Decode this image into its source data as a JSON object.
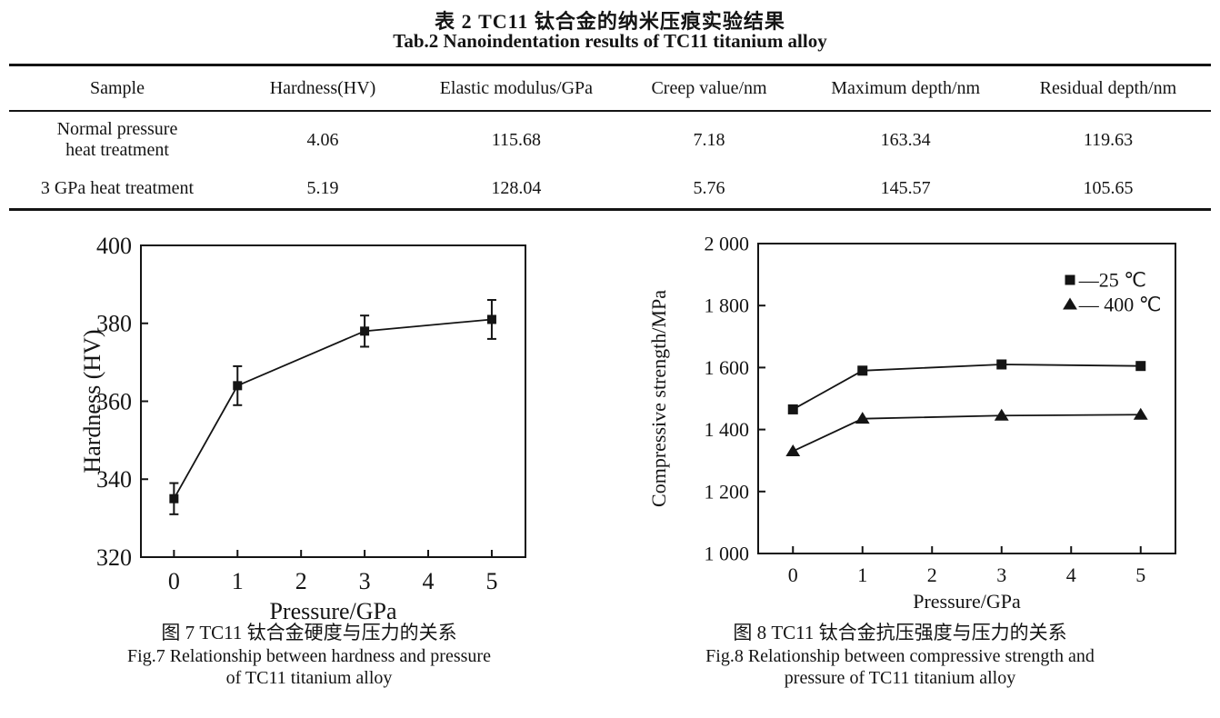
{
  "colors": {
    "ink": "#141414"
  },
  "table": {
    "caption_zh": "表 2  TC11 钛合金的纳米压痕实验结果",
    "caption_en": "Tab.2 Nanoindentation results of TC11 titanium alloy",
    "headers": [
      "Sample",
      "Hardness(HV)",
      "Elastic modulus/GPa",
      "Creep value/nm",
      "Maximum depth/nm",
      "Residual depth/nm"
    ],
    "rows": [
      [
        "Normal pressure\nheat treatment",
        "4.06",
        "115.68",
        "7.18",
        "163.34",
        "119.63"
      ],
      [
        "3 GPa heat treatment",
        "5.19",
        "128.04",
        "5.76",
        "145.57",
        "105.65"
      ]
    ]
  },
  "chart_data": [
    {
      "type": "line",
      "title": "",
      "x": [
        0,
        1,
        3,
        5
      ],
      "series": [
        {
          "name": "Hardness",
          "marker": "square",
          "values": [
            335,
            364,
            378,
            381
          ],
          "errors": [
            4,
            5,
            4,
            5
          ]
        }
      ],
      "xlabel": "Pressure/GPa",
      "ylabel": "Hardness (HV)",
      "xlim": [
        -0.52,
        5.53
      ],
      "ylim": [
        320,
        400
      ],
      "xticks": [
        0,
        1,
        2,
        3,
        4,
        5
      ],
      "yticks": [
        320,
        340,
        360,
        380,
        400
      ],
      "grid": false,
      "legend": null,
      "caption_zh": "图 7  TC11 钛合金硬度与压力的关系",
      "caption_en1": "Fig.7 Relationship between hardness and pressure",
      "caption_en2": "of TC11 titanium alloy"
    },
    {
      "type": "line",
      "title": "",
      "x": [
        0,
        1,
        3,
        5
      ],
      "series": [
        {
          "name": "25 ℃",
          "marker": "square",
          "values": [
            1465,
            1590,
            1610,
            1605
          ]
        },
        {
          "name": "400 ℃",
          "marker": "triangle",
          "values": [
            1330,
            1435,
            1445,
            1448
          ]
        }
      ],
      "xlabel": "Pressure/GPa",
      "ylabel": "Compressive strength/MPa",
      "xlim": [
        -0.5,
        5.5
      ],
      "ylim": [
        1000,
        2000
      ],
      "xticks": [
        0,
        1,
        2,
        3,
        4,
        5
      ],
      "yticks": [
        1000,
        1200,
        1400,
        1600,
        1800,
        2000
      ],
      "ytick_labels": [
        "1 000",
        "1 200",
        "1 400",
        "1 600",
        "1 800",
        "2 000"
      ],
      "grid": false,
      "legend": [
        {
          "marker": "square",
          "label": "—25 ℃"
        },
        {
          "marker": "triangle",
          "label": "— 400 ℃"
        }
      ],
      "legend_position": "top-right",
      "caption_zh": "图 8  TC11 钛合金抗压强度与压力的关系",
      "caption_en1": "Fig.8 Relationship between compressive strength and",
      "caption_en2": "pressure of TC11 titanium alloy"
    }
  ]
}
